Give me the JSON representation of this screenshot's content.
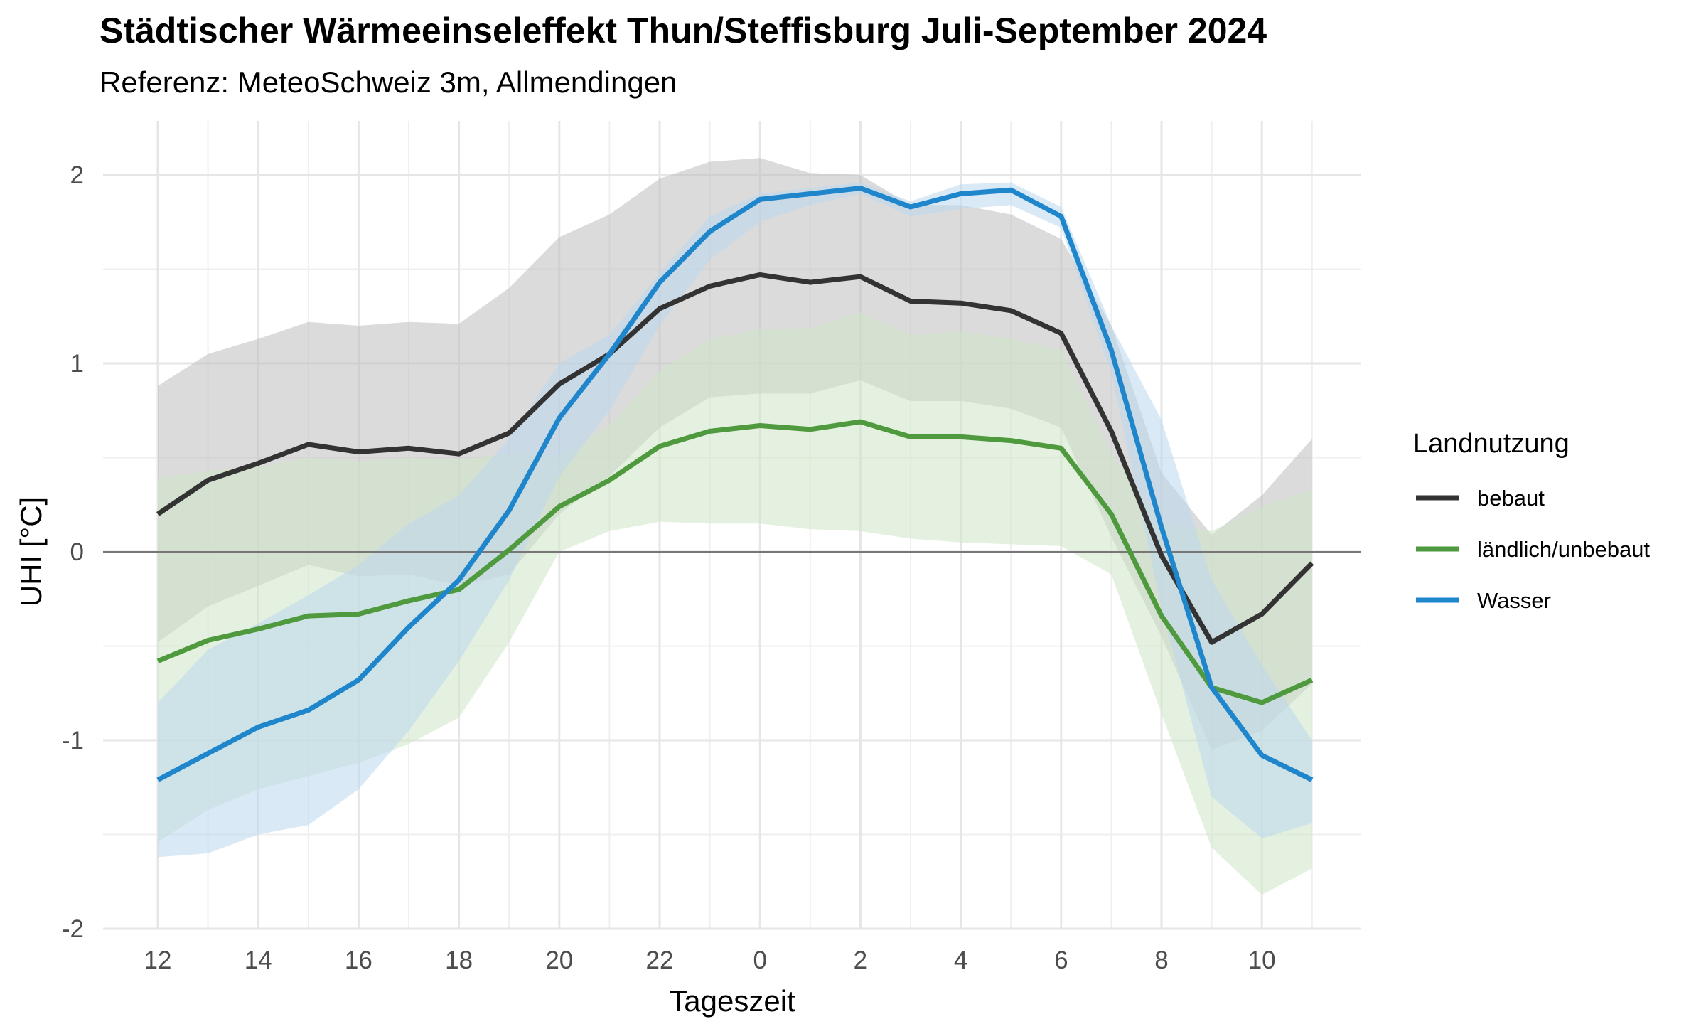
{
  "chart_data": {
    "type": "line",
    "title": "Städtischer Wärmeeinseleffekt Thun/Steffisburg Juli-September 2024",
    "subtitle": "Referenz: MeteoSchweiz 3m, Allmendingen",
    "xlabel": "Tageszeit",
    "ylabel": "UHI [°C]",
    "x": [
      12,
      13,
      14,
      15,
      16,
      17,
      18,
      19,
      20,
      21,
      22,
      23,
      0,
      1,
      2,
      3,
      4,
      5,
      6,
      7,
      8,
      9,
      10,
      11
    ],
    "x_tick_labels": [
      "12",
      "14",
      "16",
      "18",
      "20",
      "22",
      "0",
      "2",
      "4",
      "6",
      "8",
      "10"
    ],
    "y_tick_labels": [
      "-2",
      "-1",
      "0",
      "1",
      "2"
    ],
    "ylim": [
      -2.0,
      2.25
    ],
    "grid": true,
    "reference_line_y": 0,
    "legend_title": "Landnutzung",
    "legend_position": "right",
    "series": [
      {
        "name": "bebaut",
        "color": "#333333",
        "band_color": "#bdbdbd",
        "values": [
          0.2,
          0.38,
          0.47,
          0.57,
          0.53,
          0.55,
          0.52,
          0.63,
          0.89,
          1.05,
          1.29,
          1.41,
          1.47,
          1.43,
          1.46,
          1.33,
          1.32,
          1.28,
          1.16,
          0.64,
          -0.02,
          -0.48,
          -0.33,
          -0.06
        ],
        "lower": [
          -0.48,
          -0.29,
          -0.18,
          -0.07,
          -0.13,
          -0.12,
          -0.18,
          -0.12,
          0.2,
          0.4,
          0.66,
          0.82,
          0.84,
          0.84,
          0.91,
          0.8,
          0.8,
          0.76,
          0.66,
          0.08,
          -0.45,
          -1.05,
          -0.95,
          -0.7
        ],
        "upper": [
          0.88,
          1.05,
          1.13,
          1.22,
          1.2,
          1.22,
          1.21,
          1.4,
          1.67,
          1.79,
          1.98,
          2.07,
          2.09,
          2.01,
          2.0,
          1.84,
          1.84,
          1.79,
          1.66,
          1.2,
          0.42,
          0.09,
          0.3,
          0.6
        ]
      },
      {
        "name": "ländlich/unbebaut",
        "color": "#4f9a3e",
        "band_color": "#cfe5c6",
        "values": [
          -0.58,
          -0.47,
          -0.41,
          -0.34,
          -0.33,
          -0.26,
          -0.2,
          0.01,
          0.24,
          0.38,
          0.56,
          0.64,
          0.67,
          0.65,
          0.69,
          0.61,
          0.61,
          0.59,
          0.55,
          0.2,
          -0.34,
          -0.72,
          -0.8,
          -0.68
        ],
        "lower": [
          -1.54,
          -1.37,
          -1.26,
          -1.19,
          -1.12,
          -1.02,
          -0.88,
          -0.48,
          0.0,
          0.11,
          0.16,
          0.15,
          0.15,
          0.12,
          0.11,
          0.07,
          0.05,
          0.04,
          0.03,
          -0.12,
          -0.86,
          -1.57,
          -1.82,
          -1.68
        ],
        "upper": [
          0.39,
          0.43,
          0.45,
          0.5,
          0.48,
          0.5,
          0.49,
          0.52,
          0.51,
          0.67,
          0.96,
          1.13,
          1.18,
          1.19,
          1.27,
          1.15,
          1.17,
          1.13,
          1.07,
          0.52,
          0.16,
          0.11,
          0.24,
          0.33
        ]
      },
      {
        "name": "Wasser",
        "color": "#1f86cc",
        "band_color": "#bcd7ee",
        "values": [
          -1.21,
          -1.07,
          -0.93,
          -0.84,
          -0.68,
          -0.4,
          -0.15,
          0.22,
          0.71,
          1.05,
          1.43,
          1.7,
          1.87,
          1.9,
          1.93,
          1.83,
          1.9,
          1.92,
          1.78,
          1.07,
          0.13,
          -0.72,
          -1.08,
          -1.21
        ],
        "lower": [
          -1.62,
          -1.6,
          -1.5,
          -1.45,
          -1.26,
          -0.95,
          -0.58,
          -0.15,
          0.4,
          0.75,
          1.2,
          1.55,
          1.75,
          1.84,
          1.9,
          1.78,
          1.82,
          1.84,
          1.72,
          0.95,
          -0.3,
          -1.3,
          -1.52,
          -1.44
        ],
        "upper": [
          -0.8,
          -0.52,
          -0.38,
          -0.23,
          -0.07,
          0.15,
          0.3,
          0.6,
          1.0,
          1.15,
          1.48,
          1.78,
          1.9,
          1.93,
          1.96,
          1.86,
          1.95,
          1.96,
          1.83,
          1.2,
          0.7,
          -0.15,
          -0.6,
          -1.0
        ]
      }
    ]
  }
}
